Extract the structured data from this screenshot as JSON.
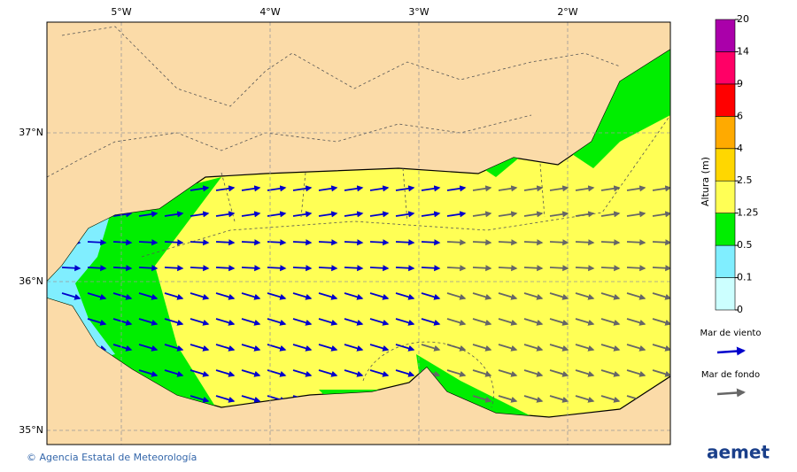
{
  "map": {
    "lon_labels": [
      "5°W",
      "4°W",
      "3°W",
      "2°W"
    ],
    "lat_labels": [
      "37°N",
      "36°N",
      "35°N"
    ],
    "colorbar": {
      "title": "Altura (m)",
      "ticks": [
        0,
        0.1,
        0.5,
        1.25,
        2.5,
        4,
        6,
        9,
        14,
        20
      ],
      "colors": [
        "#ccffff",
        "#80eeff",
        "#00ee00",
        "#ffff55",
        "#ffd700",
        "#ffaa00",
        "#ff0000",
        "#ff0066",
        "#aa00aa"
      ]
    },
    "legend": [
      {
        "label": "Mar de viento",
        "color": "#0000cc"
      },
      {
        "label": "Mar de fondo",
        "color": "#666666"
      }
    ],
    "footer": "© Agencia Estatal de Meteorología",
    "logo": "aemet"
  }
}
